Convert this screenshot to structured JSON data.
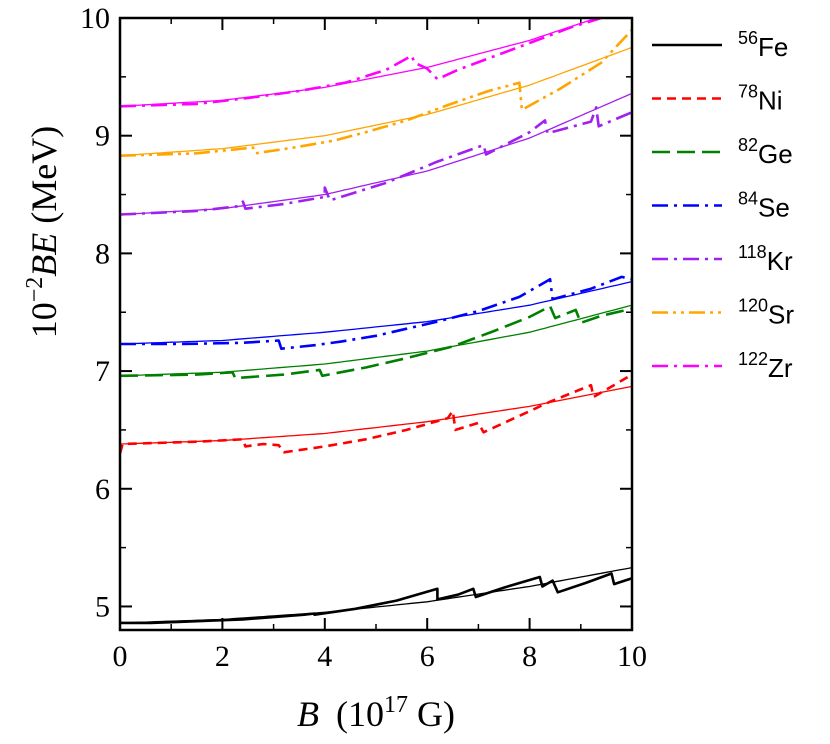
{
  "chart_data": {
    "type": "line",
    "xlabel": "B (10^17 G)",
    "xlabel_parts": {
      "var": "B",
      "pre": "(10",
      "exp": "17",
      "post": " G)"
    },
    "ylabel": "10^-2 BE (MeV)",
    "ylabel_parts": {
      "base": "10",
      "exp": "−2",
      "var": "BE",
      "post": " (MeV)"
    },
    "xlim": [
      0,
      10
    ],
    "ylim": [
      4.8,
      10
    ],
    "xticks": [
      0,
      2,
      4,
      6,
      8,
      10
    ],
    "yticks": [
      5,
      6,
      7,
      8,
      9,
      10
    ],
    "legend_position": "right-top",
    "series": [
      {
        "name": "56Fe",
        "mass": "56",
        "element": "Fe",
        "color": "#000000",
        "dash": "solid",
        "fit": [
          [
            0,
            4.86
          ],
          [
            2,
            4.89
          ],
          [
            4,
            4.95
          ],
          [
            6,
            5.04
          ],
          [
            8,
            5.17
          ],
          [
            10,
            5.33
          ]
        ],
        "values": [
          [
            0,
            4.86
          ],
          [
            0.6,
            4.86
          ],
          [
            1.2,
            4.87
          ],
          [
            1.8,
            4.88
          ],
          [
            2.4,
            4.89
          ],
          [
            3.0,
            4.91
          ],
          [
            3.6,
            4.93
          ],
          [
            3.8,
            4.94
          ],
          [
            3.8,
            4.93
          ],
          [
            4.6,
            4.98
          ],
          [
            5.4,
            5.05
          ],
          [
            6.2,
            5.15
          ],
          [
            6.2,
            5.06
          ],
          [
            6.6,
            5.1
          ],
          [
            6.9,
            5.15
          ],
          [
            6.95,
            5.08
          ],
          [
            7.5,
            5.16
          ],
          [
            8.2,
            5.25
          ],
          [
            8.25,
            5.17
          ],
          [
            8.45,
            5.22
          ],
          [
            8.55,
            5.12
          ],
          [
            9.1,
            5.2
          ],
          [
            9.6,
            5.28
          ],
          [
            9.65,
            5.19
          ],
          [
            10,
            5.24
          ]
        ]
      },
      {
        "name": "78Ni",
        "mass": "78",
        "element": "Ni",
        "color": "#ff0000",
        "dash": "short",
        "fit": [
          [
            0,
            6.38
          ],
          [
            2,
            6.41
          ],
          [
            4,
            6.47
          ],
          [
            6,
            6.57
          ],
          [
            8,
            6.7
          ],
          [
            10,
            6.87
          ]
        ],
        "values": [
          [
            0,
            6.3
          ],
          [
            0.05,
            6.38
          ],
          [
            1.5,
            6.4
          ],
          [
            2.4,
            6.42
          ],
          [
            2.45,
            6.36
          ],
          [
            2.8,
            6.38
          ],
          [
            3.1,
            6.37
          ],
          [
            3.2,
            6.31
          ],
          [
            4.0,
            6.36
          ],
          [
            4.8,
            6.42
          ],
          [
            5.6,
            6.5
          ],
          [
            6.4,
            6.6
          ],
          [
            6.5,
            6.66
          ],
          [
            6.55,
            6.5
          ],
          [
            7.0,
            6.56
          ],
          [
            7.1,
            6.48
          ],
          [
            7.7,
            6.6
          ],
          [
            8.4,
            6.74
          ],
          [
            9.2,
            6.88
          ],
          [
            9.25,
            6.78
          ],
          [
            10,
            6.97
          ]
        ]
      },
      {
        "name": "82Ge",
        "mass": "82",
        "element": "Ge",
        "color": "#008000",
        "dash": "long",
        "fit": [
          [
            0,
            6.96
          ],
          [
            2,
            6.99
          ],
          [
            4,
            7.06
          ],
          [
            6,
            7.17
          ],
          [
            8,
            7.33
          ],
          [
            10,
            7.56
          ]
        ],
        "values": [
          [
            0,
            6.96
          ],
          [
            1.5,
            6.97
          ],
          [
            2.2,
            6.99
          ],
          [
            2.25,
            6.94
          ],
          [
            3.2,
            6.97
          ],
          [
            3.9,
            7.01
          ],
          [
            3.95,
            6.96
          ],
          [
            4.8,
            7.03
          ],
          [
            5.6,
            7.11
          ],
          [
            6.5,
            7.21
          ],
          [
            7.3,
            7.34
          ],
          [
            8.0,
            7.46
          ],
          [
            8.4,
            7.55
          ],
          [
            8.5,
            7.45
          ],
          [
            8.9,
            7.52
          ],
          [
            9.0,
            7.41
          ],
          [
            9.4,
            7.47
          ],
          [
            10,
            7.53
          ]
        ]
      },
      {
        "name": "84Se",
        "mass": "84",
        "element": "Se",
        "color": "#0000ff",
        "dash": "dashdot",
        "fit": [
          [
            0,
            7.23
          ],
          [
            2,
            7.26
          ],
          [
            4,
            7.33
          ],
          [
            6,
            7.42
          ],
          [
            8,
            7.56
          ],
          [
            10,
            7.76
          ]
        ],
        "values": [
          [
            0,
            7.23
          ],
          [
            1.2,
            7.23
          ],
          [
            2.4,
            7.24
          ],
          [
            3.1,
            7.26
          ],
          [
            3.15,
            7.19
          ],
          [
            3.8,
            7.22
          ],
          [
            4.3,
            7.25
          ],
          [
            5.0,
            7.3
          ],
          [
            5.6,
            7.36
          ],
          [
            6.2,
            7.42
          ],
          [
            7.0,
            7.51
          ],
          [
            7.8,
            7.63
          ],
          [
            8.4,
            7.78
          ],
          [
            8.45,
            7.61
          ],
          [
            9.2,
            7.7
          ],
          [
            9.8,
            7.8
          ],
          [
            10,
            7.78
          ]
        ]
      },
      {
        "name": "118Kr",
        "mass": "118",
        "element": "Kr",
        "color": "#a020f0",
        "dash": "dashdot",
        "fit": [
          [
            0,
            8.33
          ],
          [
            2,
            8.38
          ],
          [
            4,
            8.5
          ],
          [
            6,
            8.7
          ],
          [
            8,
            8.98
          ],
          [
            10,
            9.36
          ]
        ],
        "values": [
          [
            0,
            8.33
          ],
          [
            1.5,
            8.36
          ],
          [
            2.3,
            8.4
          ],
          [
            2.4,
            8.44
          ],
          [
            2.45,
            8.38
          ],
          [
            3.2,
            8.42
          ],
          [
            4.0,
            8.48
          ],
          [
            4.0,
            8.56
          ],
          [
            4.1,
            8.45
          ],
          [
            5.2,
            8.6
          ],
          [
            6.2,
            8.78
          ],
          [
            7.1,
            8.92
          ],
          [
            7.15,
            8.84
          ],
          [
            8.0,
            9.03
          ],
          [
            8.3,
            9.13
          ],
          [
            8.35,
            9.02
          ],
          [
            9.2,
            9.12
          ],
          [
            9.3,
            9.24
          ],
          [
            9.35,
            9.08
          ],
          [
            10,
            9.2
          ]
        ]
      },
      {
        "name": "120Sr",
        "mass": "120",
        "element": "Sr",
        "color": "#ffa500",
        "dash": "dashdotdot",
        "fit": [
          [
            0,
            8.83
          ],
          [
            2,
            8.89
          ],
          [
            4,
            9.0
          ],
          [
            6,
            9.18
          ],
          [
            8,
            9.43
          ],
          [
            10,
            9.75
          ]
        ],
        "values": [
          [
            0,
            8.83
          ],
          [
            1.5,
            8.85
          ],
          [
            2.6,
            8.9
          ],
          [
            2.65,
            8.85
          ],
          [
            3.4,
            8.9
          ],
          [
            4.2,
            8.96
          ],
          [
            4.8,
            9.03
          ],
          [
            5.6,
            9.13
          ],
          [
            6.4,
            9.26
          ],
          [
            7.2,
            9.38
          ],
          [
            7.8,
            9.45
          ],
          [
            7.85,
            9.22
          ],
          [
            8.6,
            9.4
          ],
          [
            9.4,
            9.62
          ],
          [
            10,
            9.9
          ]
        ]
      },
      {
        "name": "122Zr",
        "mass": "122",
        "element": "Zr",
        "color": "#ff00ff",
        "dash": "dashdot",
        "fit": [
          [
            0,
            9.25
          ],
          [
            2,
            9.3
          ],
          [
            4,
            9.41
          ],
          [
            6,
            9.58
          ],
          [
            8,
            9.81
          ],
          [
            10,
            10.1
          ]
        ],
        "values": [
          [
            0,
            9.25
          ],
          [
            1.5,
            9.27
          ],
          [
            2.5,
            9.32
          ],
          [
            3.5,
            9.38
          ],
          [
            4.4,
            9.45
          ],
          [
            5.2,
            9.56
          ],
          [
            5.7,
            9.68
          ],
          [
            5.75,
            9.62
          ],
          [
            6.0,
            9.57
          ],
          [
            6.2,
            9.48
          ],
          [
            6.6,
            9.56
          ],
          [
            7.4,
            9.69
          ],
          [
            8.2,
            9.82
          ],
          [
            8.8,
            9.92
          ],
          [
            9.4,
            10.0
          ],
          [
            10,
            10.08
          ]
        ]
      }
    ]
  }
}
